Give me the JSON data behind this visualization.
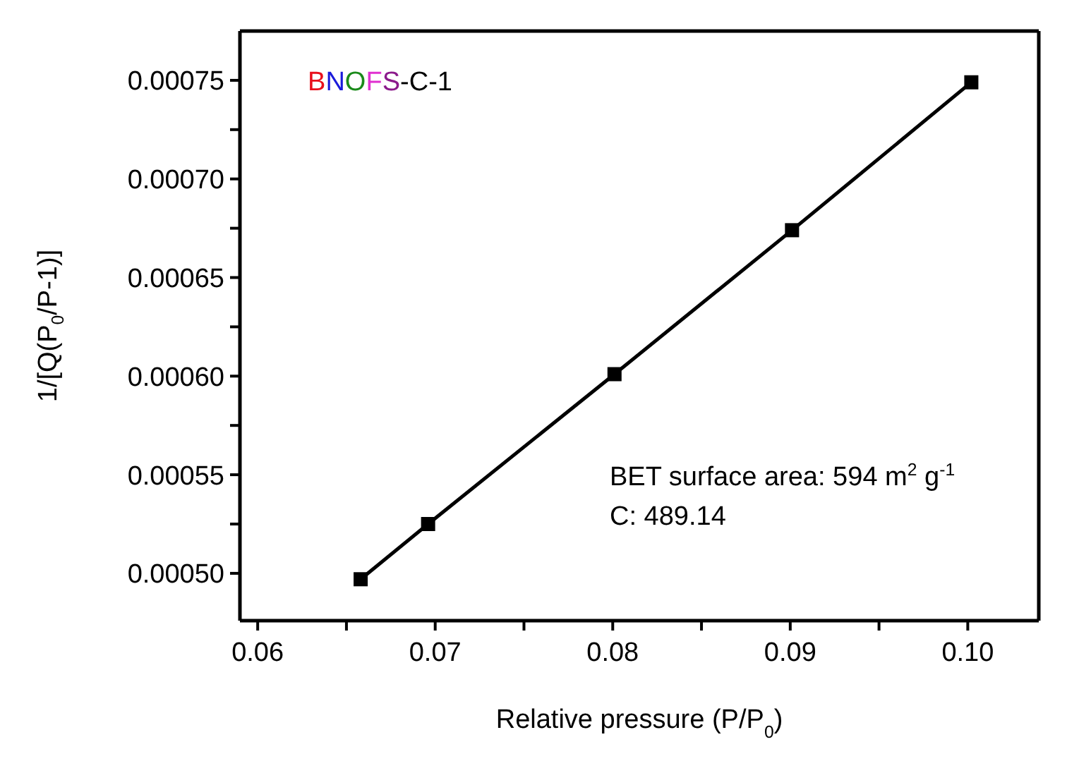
{
  "chart_data": {
    "type": "line",
    "xlabel": "Relative pressure (P/P$_{0}$)",
    "ylabel": "1/[Q(P$_{0}$/P-1)]",
    "annotations": [
      "BNOFS-C-1",
      "BET surface area: 594 m$^{2}$ g$^{-1}$",
      "C: 489.14"
    ],
    "x": [
      0.0658,
      0.0696,
      0.0801,
      0.0901,
      0.1002
    ],
    "series": [
      {
        "color": "#000000",
        "values": [
          0.000497,
          0.000525,
          0.000601,
          0.000674,
          0.000749
        ]
      }
    ],
    "xlim": [
      0.059,
      0.104
    ],
    "xticks": [
      {
        "value": 0.06,
        "label": "0.06"
      },
      {
        "value": 0.065,
        "label": null
      },
      {
        "value": 0.07,
        "label": "0.07"
      },
      {
        "value": 0.075,
        "label": null
      },
      {
        "value": 0.08,
        "label": "0.08"
      },
      {
        "value": 0.085,
        "label": null
      },
      {
        "value": 0.09,
        "label": "0.09"
      },
      {
        "value": 0.095,
        "label": null
      },
      {
        "value": 0.1,
        "label": "0.10"
      }
    ],
    "ylim": [
      0.000476,
      0.000775
    ],
    "yticks": [
      {
        "value": 0.0005,
        "label": "0.00050"
      },
      {
        "value": 0.000525,
        "label": null
      },
      {
        "value": 0.00055,
        "label": "0.00055"
      },
      {
        "value": 0.000575,
        "label": null
      },
      {
        "value": 0.0006,
        "label": "0.00060"
      },
      {
        "value": 0.000625,
        "label": null
      },
      {
        "value": 0.00065,
        "label": "0.00065"
      },
      {
        "value": 0.000675,
        "label": null
      },
      {
        "value": 0.0007,
        "label": "0.00070"
      },
      {
        "value": 0.000725,
        "label": null
      },
      {
        "value": 0.00075,
        "label": "0.00075"
      }
    ],
    "marker": "square",
    "line_style": "solid"
  }
}
